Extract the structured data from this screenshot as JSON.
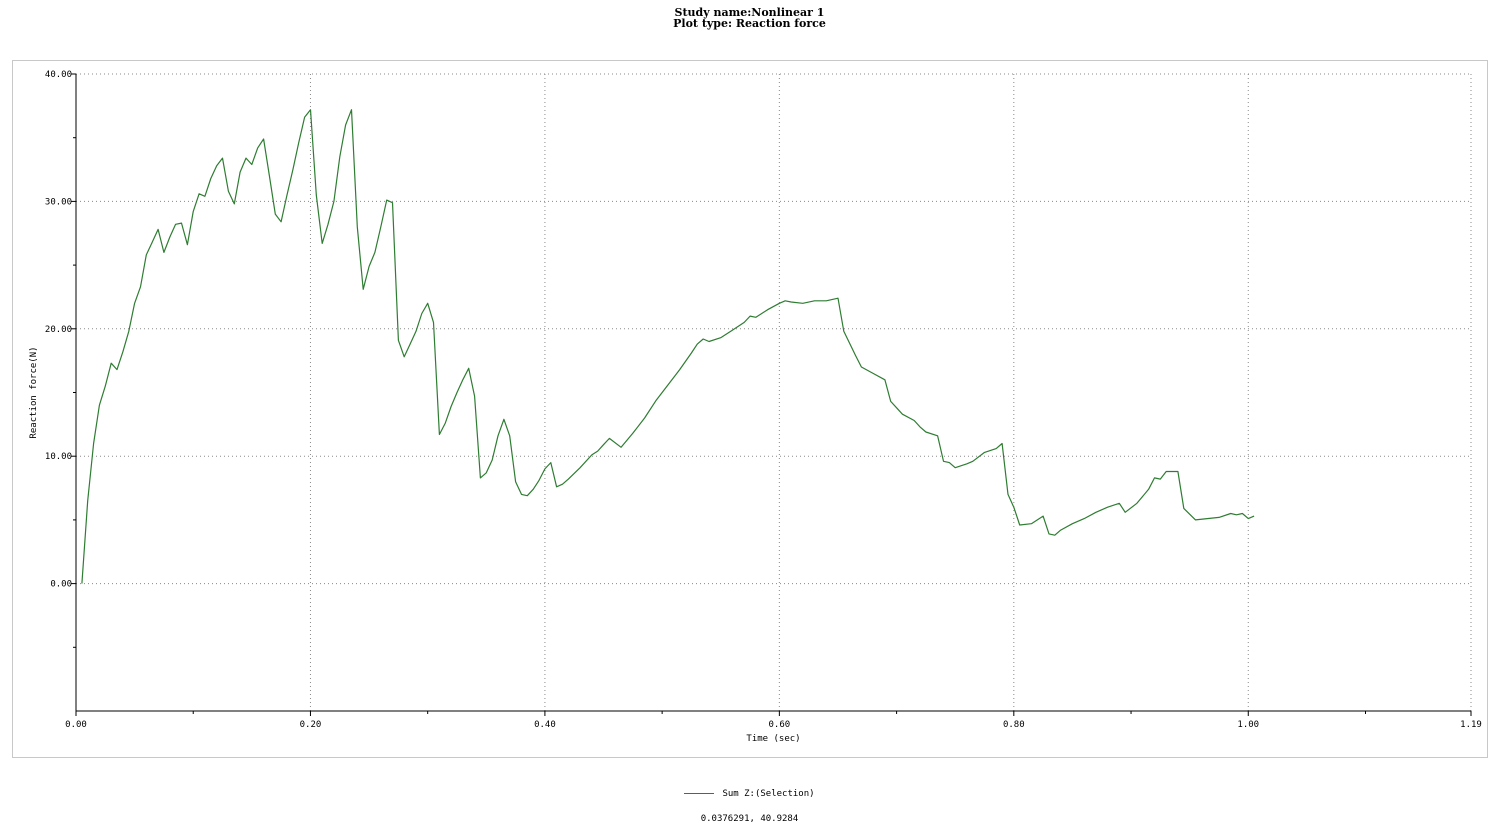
{
  "chart_data": {
    "type": "line",
    "title": "Study name:Nonlinear 1",
    "subtitle": "Plot type: Reaction force",
    "xlabel": "Time (sec)",
    "ylabel": "Reaction force(N)",
    "xlim": [
      0,
      1.19
    ],
    "ylim": [
      -10,
      40
    ],
    "x_ticks": [
      "0.00",
      "0.20",
      "0.40",
      "0.60",
      "0.80",
      "1.00",
      "1.19"
    ],
    "y_ticks": [
      "0.00",
      "10.00",
      "20.00",
      "30.00",
      "40.00"
    ],
    "grid": true,
    "legend_position": "bottom-center",
    "series": [
      {
        "name": "Sum Z:(Selection)",
        "color": "#2e7d32",
        "points": [
          [
            0.005,
            0.0
          ],
          [
            0.01,
            6.5
          ],
          [
            0.015,
            11.0
          ],
          [
            0.02,
            14.0
          ],
          [
            0.025,
            15.5
          ],
          [
            0.03,
            17.3
          ],
          [
            0.035,
            16.8
          ],
          [
            0.04,
            18.2
          ],
          [
            0.045,
            19.8
          ],
          [
            0.05,
            22.0
          ],
          [
            0.055,
            23.3
          ],
          [
            0.06,
            25.8
          ],
          [
            0.065,
            26.8
          ],
          [
            0.07,
            27.8
          ],
          [
            0.075,
            26.0
          ],
          [
            0.08,
            27.2
          ],
          [
            0.085,
            28.2
          ],
          [
            0.09,
            28.3
          ],
          [
            0.095,
            26.6
          ],
          [
            0.1,
            29.2
          ],
          [
            0.105,
            30.6
          ],
          [
            0.11,
            30.4
          ],
          [
            0.115,
            31.8
          ],
          [
            0.12,
            32.8
          ],
          [
            0.125,
            33.4
          ],
          [
            0.13,
            30.8
          ],
          [
            0.135,
            29.8
          ],
          [
            0.14,
            32.3
          ],
          [
            0.145,
            33.4
          ],
          [
            0.15,
            32.9
          ],
          [
            0.155,
            34.2
          ],
          [
            0.16,
            34.9
          ],
          [
            0.165,
            32.0
          ],
          [
            0.17,
            29.0
          ],
          [
            0.175,
            28.4
          ],
          [
            0.18,
            30.5
          ],
          [
            0.185,
            32.5
          ],
          [
            0.19,
            34.6
          ],
          [
            0.195,
            36.6
          ],
          [
            0.2,
            37.2
          ],
          [
            0.205,
            30.5
          ],
          [
            0.21,
            26.7
          ],
          [
            0.215,
            28.2
          ],
          [
            0.22,
            30.0
          ],
          [
            0.225,
            33.5
          ],
          [
            0.23,
            36.0
          ],
          [
            0.235,
            37.2
          ],
          [
            0.24,
            28.0
          ],
          [
            0.245,
            23.1
          ],
          [
            0.25,
            24.9
          ],
          [
            0.255,
            26.0
          ],
          [
            0.26,
            28.0
          ],
          [
            0.265,
            30.1
          ],
          [
            0.27,
            29.9
          ],
          [
            0.275,
            19.1
          ],
          [
            0.28,
            17.8
          ],
          [
            0.285,
            18.8
          ],
          [
            0.29,
            19.8
          ],
          [
            0.295,
            21.2
          ],
          [
            0.3,
            22.0
          ],
          [
            0.305,
            20.5
          ],
          [
            0.31,
            11.7
          ],
          [
            0.315,
            12.6
          ],
          [
            0.32,
            13.9
          ],
          [
            0.325,
            15.0
          ],
          [
            0.33,
            16.0
          ],
          [
            0.335,
            16.9
          ],
          [
            0.34,
            14.7
          ],
          [
            0.345,
            8.3
          ],
          [
            0.35,
            8.7
          ],
          [
            0.355,
            9.7
          ],
          [
            0.36,
            11.6
          ],
          [
            0.365,
            12.9
          ],
          [
            0.37,
            11.6
          ],
          [
            0.375,
            8.0
          ],
          [
            0.38,
            7.0
          ],
          [
            0.385,
            6.9
          ],
          [
            0.39,
            7.4
          ],
          [
            0.395,
            8.1
          ],
          [
            0.4,
            9.0
          ],
          [
            0.405,
            9.5
          ],
          [
            0.41,
            7.6
          ],
          [
            0.415,
            7.8
          ],
          [
            0.42,
            8.2
          ],
          [
            0.43,
            9.1
          ],
          [
            0.44,
            10.1
          ],
          [
            0.445,
            10.4
          ],
          [
            0.45,
            10.9
          ],
          [
            0.455,
            11.4
          ],
          [
            0.465,
            10.7
          ],
          [
            0.475,
            11.8
          ],
          [
            0.485,
            13.0
          ],
          [
            0.495,
            14.4
          ],
          [
            0.505,
            15.6
          ],
          [
            0.515,
            16.8
          ],
          [
            0.525,
            18.1
          ],
          [
            0.53,
            18.8
          ],
          [
            0.535,
            19.2
          ],
          [
            0.54,
            19.0
          ],
          [
            0.55,
            19.3
          ],
          [
            0.56,
            19.9
          ],
          [
            0.57,
            20.5
          ],
          [
            0.575,
            21.0
          ],
          [
            0.58,
            20.9
          ],
          [
            0.59,
            21.5
          ],
          [
            0.6,
            22.0
          ],
          [
            0.605,
            22.2
          ],
          [
            0.61,
            22.1
          ],
          [
            0.62,
            22.0
          ],
          [
            0.63,
            22.2
          ],
          [
            0.64,
            22.2
          ],
          [
            0.65,
            22.4
          ],
          [
            0.655,
            19.8
          ],
          [
            0.665,
            17.9
          ],
          [
            0.67,
            17.0
          ],
          [
            0.68,
            16.5
          ],
          [
            0.69,
            16.0
          ],
          [
            0.695,
            14.3
          ],
          [
            0.7,
            13.8
          ],
          [
            0.705,
            13.3
          ],
          [
            0.715,
            12.8
          ],
          [
            0.72,
            12.3
          ],
          [
            0.725,
            11.9
          ],
          [
            0.735,
            11.6
          ],
          [
            0.74,
            9.6
          ],
          [
            0.745,
            9.5
          ],
          [
            0.75,
            9.1
          ],
          [
            0.76,
            9.4
          ],
          [
            0.765,
            9.6
          ],
          [
            0.775,
            10.3
          ],
          [
            0.785,
            10.6
          ],
          [
            0.79,
            11.0
          ],
          [
            0.795,
            7.0
          ],
          [
            0.8,
            6.0
          ],
          [
            0.805,
            4.6
          ],
          [
            0.815,
            4.7
          ],
          [
            0.825,
            5.3
          ],
          [
            0.83,
            3.9
          ],
          [
            0.835,
            3.8
          ],
          [
            0.84,
            4.2
          ],
          [
            0.85,
            4.7
          ],
          [
            0.86,
            5.1
          ],
          [
            0.87,
            5.6
          ],
          [
            0.88,
            6.0
          ],
          [
            0.89,
            6.3
          ],
          [
            0.895,
            5.6
          ],
          [
            0.905,
            6.3
          ],
          [
            0.915,
            7.4
          ],
          [
            0.92,
            8.3
          ],
          [
            0.925,
            8.2
          ],
          [
            0.93,
            8.8
          ],
          [
            0.94,
            8.8
          ],
          [
            0.945,
            5.9
          ],
          [
            0.955,
            5.0
          ],
          [
            0.965,
            5.1
          ],
          [
            0.975,
            5.2
          ],
          [
            0.985,
            5.5
          ],
          [
            0.99,
            5.4
          ],
          [
            0.995,
            5.5
          ],
          [
            1.0,
            5.1
          ],
          [
            1.005,
            5.3
          ]
        ]
      }
    ]
  },
  "status": {
    "coordinates": "0.0376291, 40.9284"
  }
}
